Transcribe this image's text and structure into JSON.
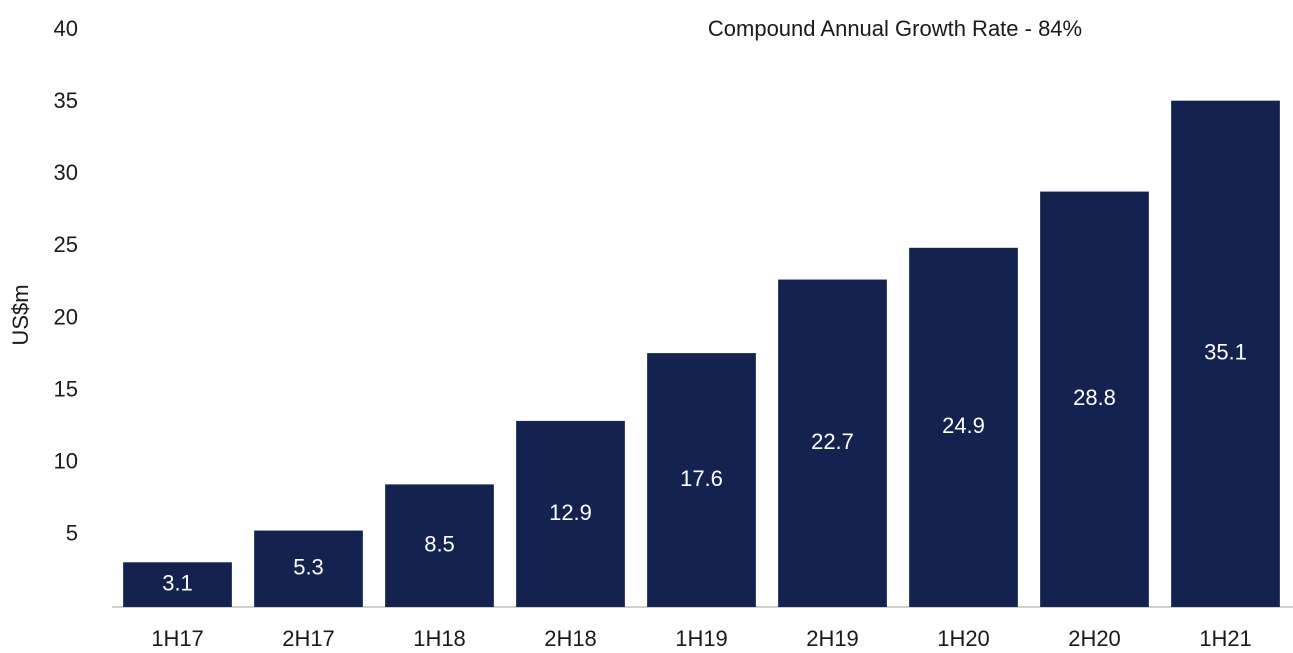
{
  "chart_data": {
    "type": "bar",
    "annotation": "Compound Annual Growth Rate - 84%",
    "y_label": "US$m",
    "categories": [
      "1H17",
      "2H17",
      "1H18",
      "2H18",
      "1H19",
      "2H19",
      "1H20",
      "2H20",
      "1H21"
    ],
    "values": [
      3.1,
      5.3,
      8.5,
      12.9,
      17.6,
      22.7,
      24.9,
      28.8,
      35.1
    ],
    "color": "#13224f",
    "ylim": [
      0,
      40
    ],
    "yticks": [
      5,
      10,
      15,
      20,
      25,
      30,
      35,
      40
    ],
    "grid": false
  }
}
